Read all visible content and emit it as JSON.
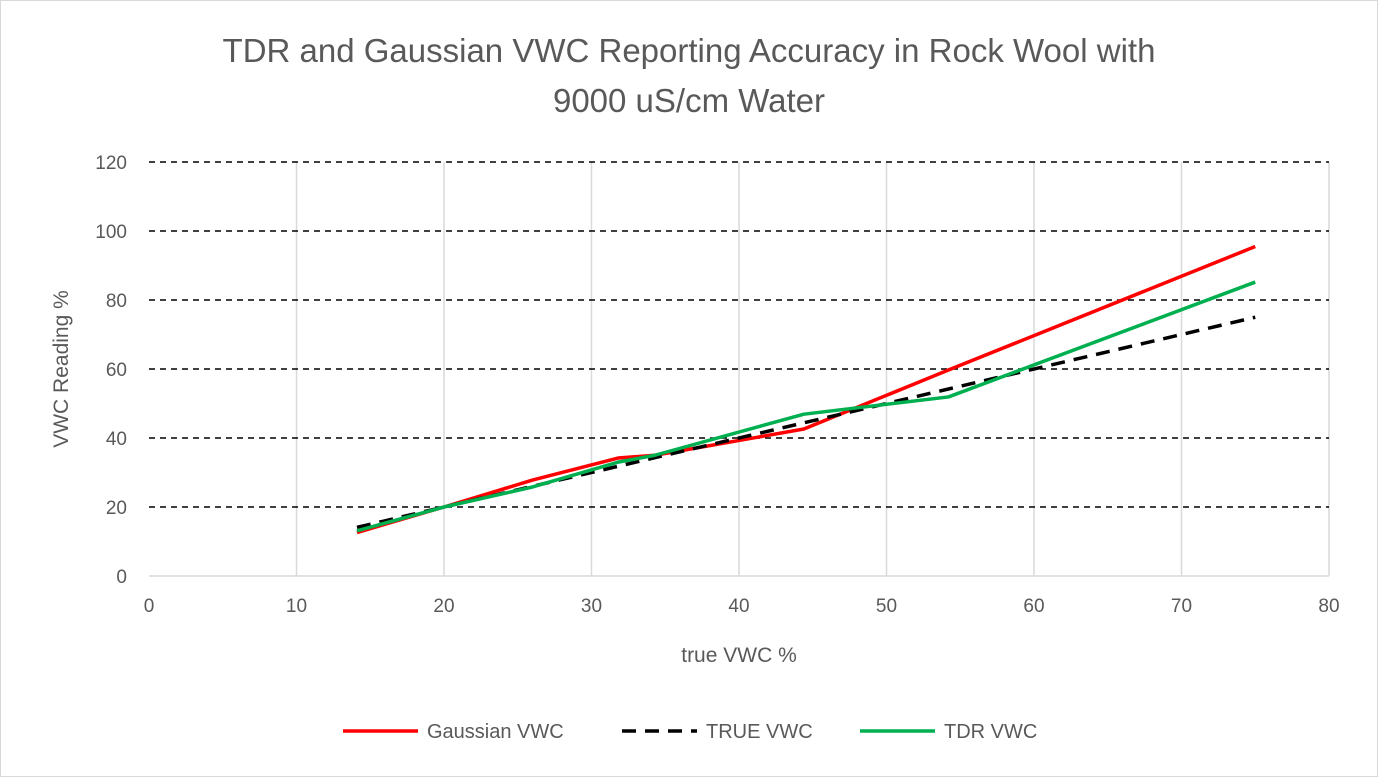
{
  "chart_data": {
    "type": "line",
    "title_lines": [
      "TDR and Gaussian VWC Reporting Accuracy in Rock Wool with",
      "9000 uS/cm Water"
    ],
    "xlabel": "true VWC %",
    "ylabel": "VWC Reading %",
    "xlim": [
      0,
      80
    ],
    "ylim": [
      0,
      120
    ],
    "xticks": [
      0,
      10,
      20,
      30,
      40,
      50,
      60,
      70,
      80
    ],
    "yticks": [
      0,
      20,
      40,
      60,
      80,
      100,
      120
    ],
    "grid": {
      "x": "solid light gray",
      "y": "dashed black"
    },
    "legend_position": "bottom",
    "series": [
      {
        "name": "Gaussian VWC",
        "color": "#ff0000",
        "style": "solid",
        "x": [
          14.1,
          20,
          26,
          31.8,
          34.3,
          44.4,
          54.2,
          75
        ],
        "y": [
          12.6,
          20,
          27.8,
          34.2,
          35,
          42.6,
          59.7,
          95.5
        ]
      },
      {
        "name": "TRUE VWC",
        "color": "#000000",
        "style": "dashed",
        "x": [
          14.1,
          20,
          26,
          31.8,
          34.3,
          44.4,
          54.2,
          75
        ],
        "y": [
          14.1,
          20,
          26,
          31.8,
          34.3,
          44.4,
          54.2,
          75
        ]
      },
      {
        "name": "TDR VWC",
        "color": "#00b050",
        "style": "solid",
        "x": [
          14.1,
          20,
          26,
          31.8,
          34.3,
          44.4,
          54.2,
          75
        ],
        "y": [
          13.1,
          20,
          25.8,
          33,
          35,
          46.9,
          51.9,
          85.2
        ]
      }
    ]
  }
}
